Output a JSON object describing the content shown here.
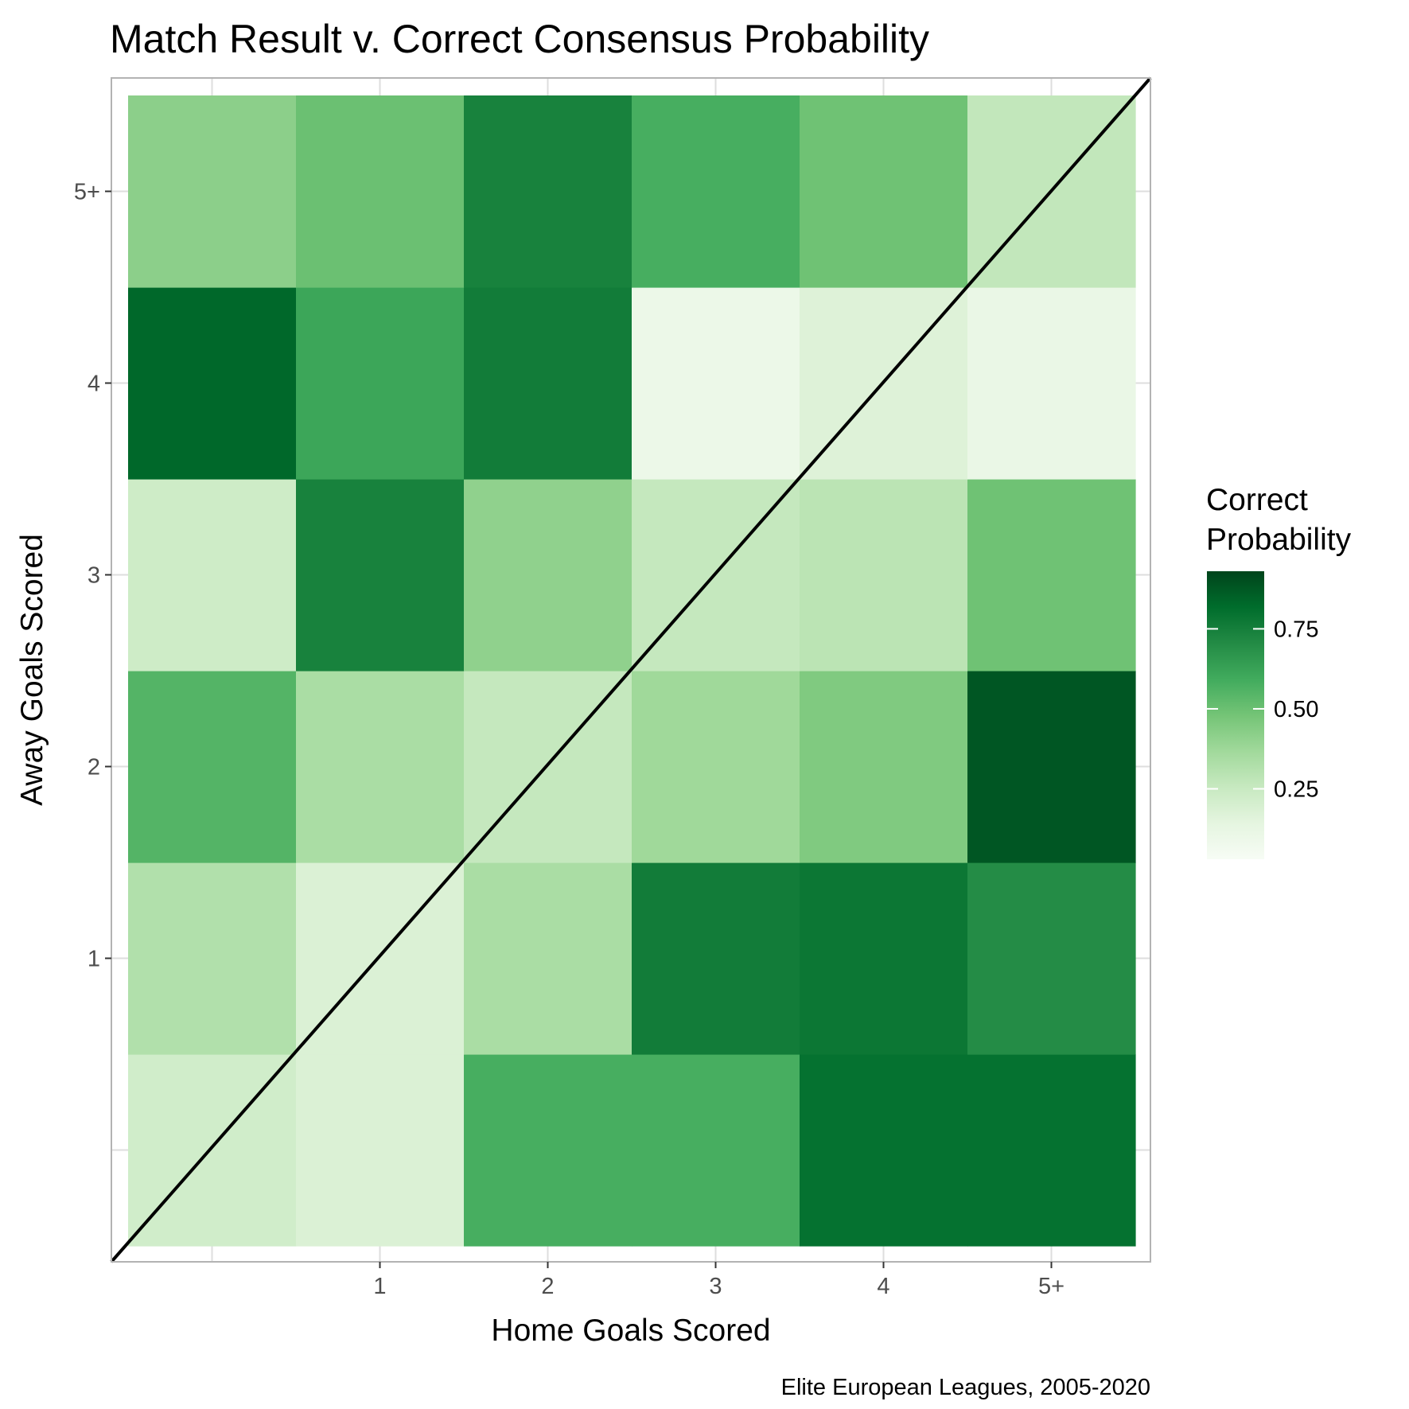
{
  "chart_data": {
    "type": "heatmap",
    "title": "Match Result v. Correct Consensus Probability",
    "xlabel": "Home Goals Scored",
    "ylabel": "Away Goals Scored",
    "caption": "Elite European Leagues, 2005-2020",
    "x_categories": [
      "0",
      "1",
      "2",
      "3",
      "4",
      "5+"
    ],
    "y_categories": [
      "0",
      "1",
      "2",
      "3",
      "4",
      "5+"
    ],
    "x_tick_labels": [
      "",
      "1",
      "2",
      "3",
      "4",
      "5+"
    ],
    "y_tick_labels": [
      "",
      "1",
      "2",
      "3",
      "4",
      "5+"
    ],
    "cells": [
      {
        "home": "0",
        "away": "0",
        "value": 0.22
      },
      {
        "home": "1",
        "away": "0",
        "value": 0.18
      },
      {
        "home": "2",
        "away": "0",
        "value": 0.58
      },
      {
        "home": "3",
        "away": "0",
        "value": 0.58
      },
      {
        "home": "4",
        "away": "0",
        "value": 0.8
      },
      {
        "home": "5+",
        "away": "0",
        "value": 0.8
      },
      {
        "home": "0",
        "away": "1",
        "value": 0.32
      },
      {
        "home": "1",
        "away": "1",
        "value": 0.18
      },
      {
        "home": "2",
        "away": "1",
        "value": 0.34
      },
      {
        "home": "3",
        "away": "1",
        "value": 0.76
      },
      {
        "home": "4",
        "away": "1",
        "value": 0.78
      },
      {
        "home": "5+",
        "away": "1",
        "value": 0.7
      },
      {
        "home": "0",
        "away": "2",
        "value": 0.55
      },
      {
        "home": "1",
        "away": "2",
        "value": 0.34
      },
      {
        "home": "2",
        "away": "2",
        "value": 0.26
      },
      {
        "home": "3",
        "away": "2",
        "value": 0.37
      },
      {
        "home": "4",
        "away": "2",
        "value": 0.45
      },
      {
        "home": "5+",
        "away": "2",
        "value": 0.88
      },
      {
        "home": "0",
        "away": "3",
        "value": 0.23
      },
      {
        "home": "1",
        "away": "3",
        "value": 0.74
      },
      {
        "home": "2",
        "away": "3",
        "value": 0.41
      },
      {
        "home": "3",
        "away": "3",
        "value": 0.26
      },
      {
        "home": "4",
        "away": "3",
        "value": 0.29
      },
      {
        "home": "5+",
        "away": "3",
        "value": 0.49
      },
      {
        "home": "0",
        "away": "4",
        "value": 0.83
      },
      {
        "home": "1",
        "away": "4",
        "value": 0.61
      },
      {
        "home": "2",
        "away": "4",
        "value": 0.76
      },
      {
        "home": "3",
        "away": "4",
        "value": 0.1
      },
      {
        "home": "4",
        "away": "4",
        "value": 0.17
      },
      {
        "home": "5+",
        "away": "4",
        "value": 0.11
      },
      {
        "home": "0",
        "away": "5+",
        "value": 0.42
      },
      {
        "home": "1",
        "away": "5+",
        "value": 0.5
      },
      {
        "home": "2",
        "away": "5+",
        "value": 0.74
      },
      {
        "home": "3",
        "away": "5+",
        "value": 0.58
      },
      {
        "home": "4",
        "away": "5+",
        "value": 0.49
      },
      {
        "home": "5+",
        "away": "5+",
        "value": 0.27
      }
    ],
    "diagonal_reference_line": true,
    "grid": true,
    "legend": {
      "title_lines": [
        "Correct",
        "Probability"
      ],
      "ticks": [
        0.25,
        0.5,
        0.75
      ],
      "tick_labels": [
        "0.25",
        "0.50",
        "0.75"
      ],
      "range": [
        0.03,
        0.93
      ],
      "placement": "right"
    },
    "color_scale": {
      "low": "#f7fcf5",
      "stops": [
        "#f7fcf5",
        "#e5f5e0",
        "#c7e9c0",
        "#a1d99b",
        "#74c476",
        "#41ab5d",
        "#238b45",
        "#006d2c",
        "#00441b"
      ]
    }
  }
}
